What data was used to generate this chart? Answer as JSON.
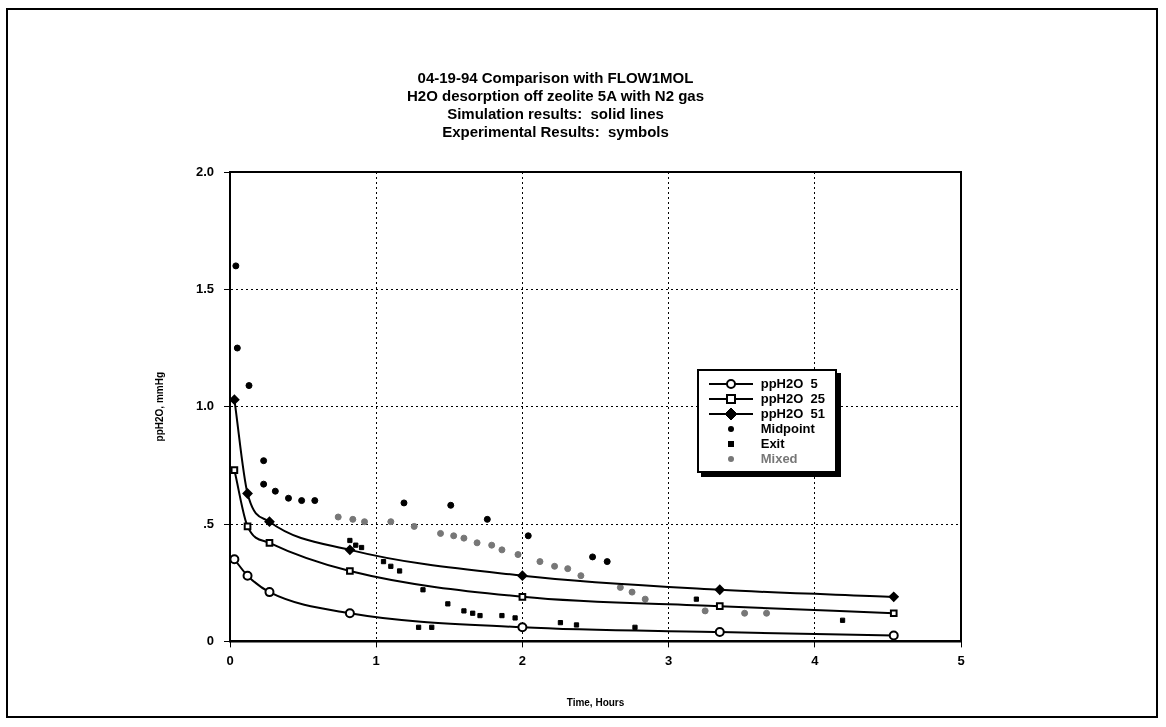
{
  "chart_data": {
    "type": "line",
    "title": [
      "04-19-94 Comparison with FLOW1MOL",
      "H2O desorption off zeolite 5A with N2 gas",
      "Simulation results:  solid lines",
      "Experimental Results:  symbols"
    ],
    "xlabel": "Time, Hours",
    "ylabel": "ppH2O, mmHg",
    "xlim": [
      0,
      5
    ],
    "xticks": [
      0,
      1,
      2,
      3,
      4,
      5
    ],
    "ylim": [
      0,
      2
    ],
    "yticks": [
      0,
      {
        "value": 0.5,
        "label": ".5"
      },
      {
        "value": 1,
        "label": "1.0"
      },
      {
        "value": 1.5,
        "label": "1.5"
      },
      {
        "value": 2,
        "label": "2.0"
      }
    ],
    "grid": true,
    "legend": "right",
    "line_style": "solid",
    "series": [
      {
        "name": "ppH2O  5",
        "type": "line",
        "marker": "circle",
        "color": "#000000",
        "x": [
          0.03,
          0.12,
          0.27,
          0.82,
          2,
          3.35,
          4.54
        ],
        "values": [
          0.35,
          0.28,
          0.21,
          0.12,
          0.06,
          0.04,
          0.025
        ]
      },
      {
        "name": "ppH2O  25",
        "type": "line",
        "marker": "square",
        "color": "#000000",
        "x": [
          0.03,
          0.12,
          0.27,
          0.82,
          2,
          3.35,
          4.54
        ],
        "values": [
          0.73,
          0.49,
          0.42,
          0.3,
          0.19,
          0.15,
          0.12
        ]
      },
      {
        "name": "ppH2O  51",
        "type": "line",
        "marker": "diamond",
        "color": "#000000",
        "x": [
          0.03,
          0.12,
          0.27,
          0.82,
          2,
          3.35,
          4.54
        ],
        "values": [
          1.03,
          0.63,
          0.51,
          0.39,
          0.28,
          0.22,
          0.19
        ]
      },
      {
        "name": "Midpoint",
        "type": "scatter",
        "marker": "circle",
        "color": "#000000",
        "x": [
          0.04,
          0.05,
          0.13,
          0.23,
          0.23,
          0.31,
          0.4,
          0.49,
          0.58,
          1.19,
          1.51,
          1.76,
          2.04,
          2.48,
          2.58
        ],
        "values": [
          1.6,
          1.25,
          1.09,
          0.77,
          0.67,
          0.64,
          0.61,
          0.6,
          0.6,
          0.59,
          0.58,
          0.52,
          0.45,
          0.36,
          0.34
        ]
      },
      {
        "name": "Exit",
        "type": "scatter",
        "marker": "square",
        "color": "#000000",
        "x": [
          0.82,
          0.86,
          0.9,
          1.05,
          1.1,
          1.16,
          1.29,
          1.32,
          1.38,
          1.49,
          1.6,
          1.66,
          1.71,
          1.86,
          1.95,
          2.26,
          2.37,
          2.77,
          3.19,
          4.19
        ],
        "values": [
          0.43,
          0.41,
          0.4,
          0.34,
          0.32,
          0.3,
          0.06,
          0.22,
          0.06,
          0.16,
          0.13,
          0.12,
          0.11,
          0.11,
          0.1,
          0.08,
          0.07,
          0.06,
          0.18,
          0.09
        ]
      },
      {
        "name": "Mixed",
        "type": "scatter",
        "marker": "circle",
        "color": "#777777",
        "x": [
          0.74,
          0.84,
          0.92,
          1.1,
          1.26,
          1.44,
          1.53,
          1.6,
          1.69,
          1.79,
          1.86,
          1.97,
          2.12,
          2.22,
          2.31,
          2.4,
          2.67,
          2.75,
          2.84,
          3.25,
          3.52,
          3.67
        ],
        "values": [
          0.53,
          0.52,
          0.51,
          0.51,
          0.49,
          0.46,
          0.45,
          0.44,
          0.42,
          0.41,
          0.39,
          0.37,
          0.34,
          0.32,
          0.31,
          0.28,
          0.23,
          0.21,
          0.18,
          0.13,
          0.12,
          0.12
        ]
      }
    ]
  }
}
